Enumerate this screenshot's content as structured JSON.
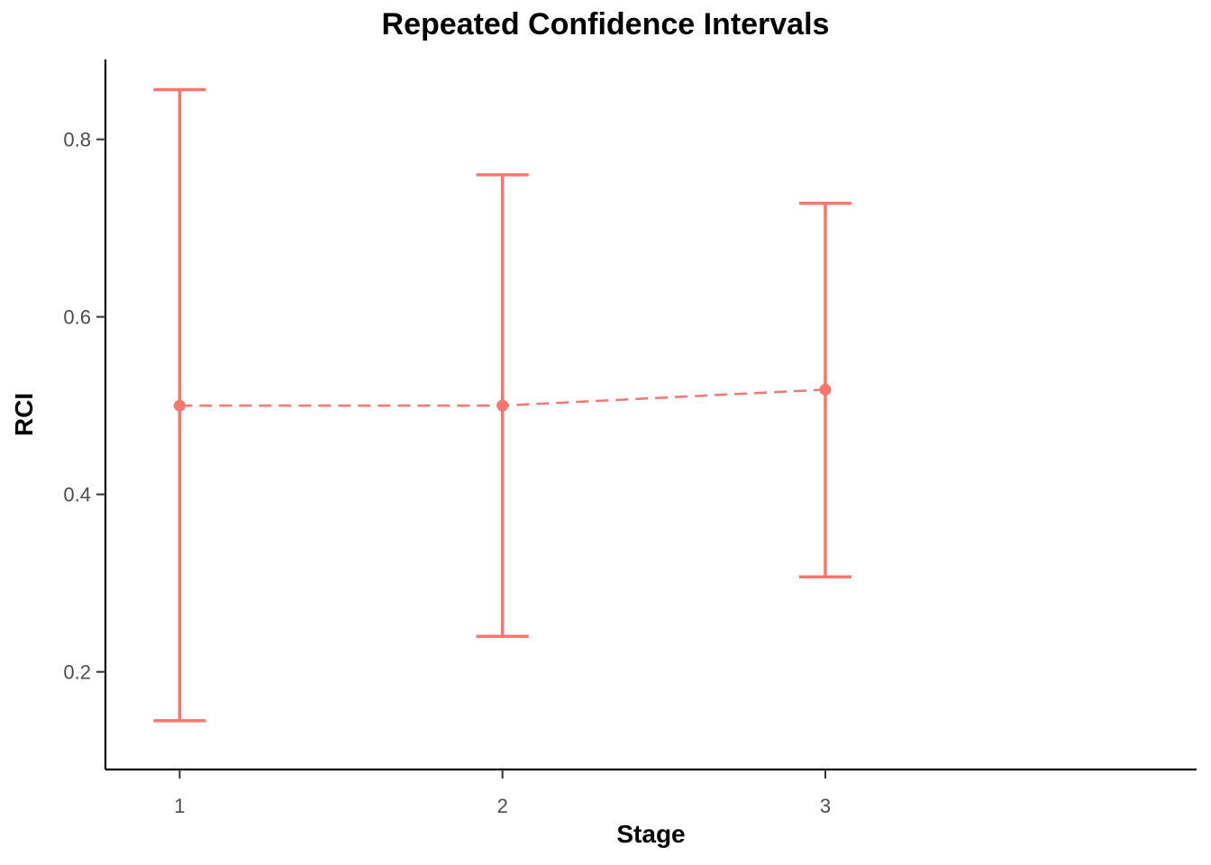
{
  "chart_data": {
    "type": "line",
    "title": "Repeated Confidence Intervals",
    "xlabel": "Stage",
    "ylabel": "RCI",
    "x": [
      1,
      2,
      3
    ],
    "estimate": [
      0.5,
      0.5,
      0.518
    ],
    "lower": [
      0.145,
      0.24,
      0.307
    ],
    "upper": [
      0.856,
      0.76,
      0.728
    ],
    "x_ticks": [
      "1",
      "2",
      "3"
    ],
    "y_ticks": [
      0.2,
      0.4,
      0.6,
      0.8
    ],
    "y_tick_labels": [
      "0.2",
      "0.4",
      "0.6",
      "0.8"
    ],
    "xlim": [
      0.77,
      4.15
    ],
    "ylim": [
      0.09,
      0.89
    ],
    "grid": false,
    "line_style": "dashed",
    "color": "#F8766D"
  }
}
